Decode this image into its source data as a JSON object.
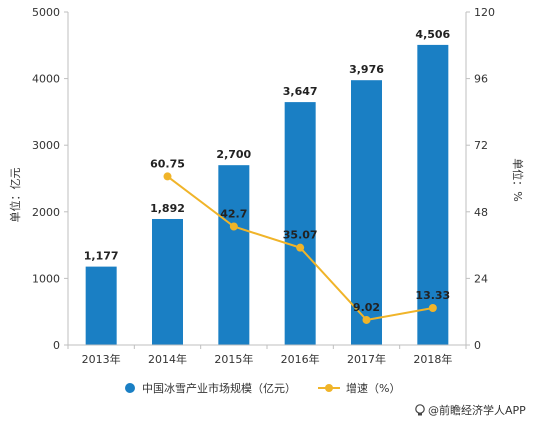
{
  "chart_data": {
    "type": "bar",
    "categories": [
      "2013年",
      "2014年",
      "2015年",
      "2016年",
      "2017年",
      "2018年"
    ],
    "series": [
      {
        "name": "中国冰雪产业市场规模（亿元）",
        "type": "bar",
        "axis": "left",
        "color": "#1a7fc4",
        "values": [
          1177,
          1892,
          2700,
          3647,
          3976,
          4506
        ],
        "labels": [
          "1,177",
          "1,892",
          "2,700",
          "3,647",
          "3,976",
          "4,506"
        ]
      },
      {
        "name": "增速（%）",
        "type": "line",
        "axis": "right",
        "color": "#f0b429",
        "values": [
          null,
          60.75,
          42.7,
          35.07,
          9.02,
          13.33
        ],
        "labels": [
          "",
          "60.75",
          "42.7",
          "35.07",
          "9.02",
          "13.33"
        ]
      }
    ],
    "ylabel": "单位：亿元",
    "y2label": "单位：%",
    "ylim": [
      0,
      5000
    ],
    "y2lim": [
      0,
      120
    ],
    "yticks": [
      "0",
      "1000",
      "2000",
      "3000",
      "4000",
      "5000"
    ],
    "y2ticks": [
      "0",
      "24",
      "48",
      "72",
      "96",
      "120"
    ],
    "legend_position": "bottom",
    "grid": false
  },
  "credit": {
    "icon": "lightbulb-icon",
    "text": "@前瞻经济学人APP"
  }
}
